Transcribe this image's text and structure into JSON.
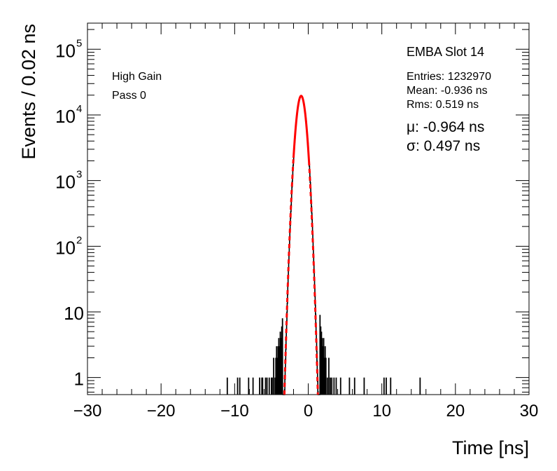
{
  "chart_data": {
    "type": "histogram",
    "title": "",
    "xlabel": "Time [ns]",
    "ylabel": "Events / 0.02 ns",
    "xlim": [
      -30,
      30
    ],
    "ylim": [
      0.55,
      250000
    ],
    "yscale": "log",
    "bin_width": 0.02,
    "grid": false,
    "x_ticks": [
      -30,
      -20,
      -10,
      0,
      10,
      20,
      30
    ],
    "x_tick_labels": [
      "−30",
      "−20",
      "−10",
      "0",
      "10",
      "20",
      "30"
    ],
    "y_ticks": [
      {
        "value": 1,
        "base": "1",
        "exp": ""
      },
      {
        "value": 10,
        "base": "10",
        "exp": ""
      },
      {
        "value": 100,
        "base": "10",
        "exp": "2"
      },
      {
        "value": 1000,
        "base": "10",
        "exp": "3"
      },
      {
        "value": 10000,
        "base": "10",
        "exp": "4"
      },
      {
        "value": 100000,
        "base": "10",
        "exp": "5"
      }
    ],
    "series": [
      {
        "name": "",
        "kind": "histogram",
        "color": "#000000",
        "core_gaussian": {
          "mean": -0.964,
          "sigma": 0.497,
          "peak": 19500
        },
        "tail_points": [
          {
            "x": -11.0,
            "y": 1
          },
          {
            "x": -9.6,
            "y": 1
          },
          {
            "x": -9.3,
            "y": 1
          },
          {
            "x": -8.1,
            "y": 1
          },
          {
            "x": -7.5,
            "y": 1
          },
          {
            "x": -6.6,
            "y": 1
          },
          {
            "x": -6.3,
            "y": 1
          },
          {
            "x": -6.2,
            "y": 1
          },
          {
            "x": -5.8,
            "y": 1
          },
          {
            "x": -5.6,
            "y": 1
          },
          {
            "x": -5.3,
            "y": 1
          },
          {
            "x": -5.0,
            "y": 1
          },
          {
            "x": -4.9,
            "y": 1
          },
          {
            "x": -4.7,
            "y": 2
          },
          {
            "x": -4.5,
            "y": 1
          },
          {
            "x": -4.4,
            "y": 2
          },
          {
            "x": -4.3,
            "y": 3
          },
          {
            "x": -4.2,
            "y": 2
          },
          {
            "x": -4.1,
            "y": 3
          },
          {
            "x": -4.0,
            "y": 4
          },
          {
            "x": -3.9,
            "y": 3
          },
          {
            "x": -3.8,
            "y": 5
          },
          {
            "x": -3.7,
            "y": 4
          },
          {
            "x": -3.6,
            "y": 6
          },
          {
            "x": -3.5,
            "y": 8
          },
          {
            "x": 1.6,
            "y": 9
          },
          {
            "x": 1.7,
            "y": 6
          },
          {
            "x": 1.8,
            "y": 5
          },
          {
            "x": 1.9,
            "y": 4
          },
          {
            "x": 2.0,
            "y": 3
          },
          {
            "x": 2.1,
            "y": 4
          },
          {
            "x": 2.2,
            "y": 2
          },
          {
            "x": 2.3,
            "y": 3
          },
          {
            "x": 2.4,
            "y": 2
          },
          {
            "x": 2.6,
            "y": 1
          },
          {
            "x": 2.8,
            "y": 2
          },
          {
            "x": 3.0,
            "y": 1
          },
          {
            "x": 3.2,
            "y": 1
          },
          {
            "x": 3.5,
            "y": 1
          },
          {
            "x": 3.8,
            "y": 1
          },
          {
            "x": 4.4,
            "y": 1
          },
          {
            "x": 5.6,
            "y": 1
          },
          {
            "x": 6.3,
            "y": 1
          },
          {
            "x": 7.6,
            "y": 1
          },
          {
            "x": 10.3,
            "y": 1
          },
          {
            "x": 10.6,
            "y": 1
          },
          {
            "x": 11.2,
            "y": 1
          },
          {
            "x": 15.2,
            "y": 1
          }
        ]
      },
      {
        "name": "",
        "kind": "gaussian-fit",
        "color": "#ff0000",
        "mean": -0.964,
        "sigma": 0.497,
        "peak": 19500,
        "fit_range": [
          -2.0,
          0.1
        ],
        "style": "solid within fit range, dashed outside"
      }
    ],
    "annotations": {
      "slot": "EMBA Slot 14",
      "gain": "High Gain",
      "pass": "Pass 0",
      "entries": "Entries: 1232970",
      "mean": "Mean: -0.936 ns",
      "rms": "Rms: 0.519 ns",
      "mu": "μ: -0.964 ns",
      "sigma": "σ: 0.497 ns"
    }
  }
}
